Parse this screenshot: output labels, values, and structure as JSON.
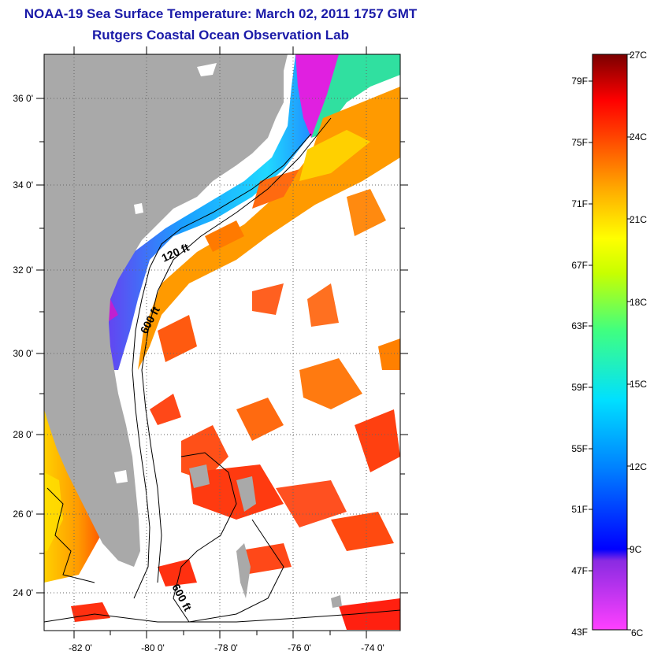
{
  "title": "NOAA-19 Sea Surface Temperature:  March 02, 2011 1757 GMT",
  "subtitle": "Rutgers Coastal Ocean Observation Lab",
  "map": {
    "lat_labels": [
      "36 0'",
      "34 0'",
      "32 0'",
      "30 0'",
      "28 0'",
      "26 0'",
      "24 0'"
    ],
    "lon_labels": [
      "-82 0'",
      "-80 0'",
      "-78 0'",
      "-76 0'",
      "-74 0'"
    ],
    "depth_labels": [
      "120 ft",
      "600 ft",
      "600 ft"
    ],
    "colors": {
      "land": "#a9a9a9",
      "cloud": "#ffffff",
      "gridline": "#666666"
    }
  },
  "colorbar": {
    "fahrenheit_labels": [
      "79F",
      "75F",
      "71F",
      "67F",
      "63F",
      "59F",
      "55F",
      "51F",
      "47F",
      "43F"
    ],
    "celsius_labels": [
      "27C",
      "24C",
      "21C",
      "18C",
      "15C",
      "12C",
      "9C",
      "6C"
    ],
    "range_f": [
      43,
      81
    ],
    "range_c": [
      6,
      27
    ]
  }
}
